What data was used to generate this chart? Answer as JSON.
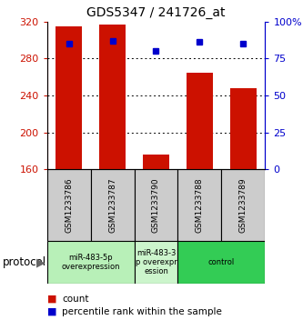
{
  "title": "GDS5347 / 241726_at",
  "samples": [
    "GSM1233786",
    "GSM1233787",
    "GSM1233790",
    "GSM1233788",
    "GSM1233789"
  ],
  "counts": [
    315,
    317,
    176,
    265,
    248
  ],
  "percentile_ranks": [
    85,
    87,
    80,
    86,
    85
  ],
  "ylim_left": [
    160,
    320
  ],
  "ylim_right": [
    0,
    100
  ],
  "yticks_left": [
    160,
    200,
    240,
    280,
    320
  ],
  "yticks_right": [
    0,
    25,
    50,
    75,
    100
  ],
  "bar_color": "#cc1100",
  "dot_color": "#0000cc",
  "groups": [
    {
      "label": "miR-483-5p\noverexpression",
      "start": 0,
      "end": 2,
      "color": "#b8f0b8"
    },
    {
      "label": "miR-483-3\np overexpr\nession",
      "start": 2,
      "end": 3,
      "color": "#ccf5cc"
    },
    {
      "label": "control",
      "start": 3,
      "end": 5,
      "color": "#33cc55"
    }
  ],
  "legend_count_label": "count",
  "legend_percentile_label": "percentile rank within the sample",
  "protocol_label": "protocol",
  "bg_color": "#ffffff",
  "grid_color": "#000000",
  "left_tick_color": "#cc1100",
  "right_tick_color": "#0000cc",
  "sample_bg": "#cccccc"
}
